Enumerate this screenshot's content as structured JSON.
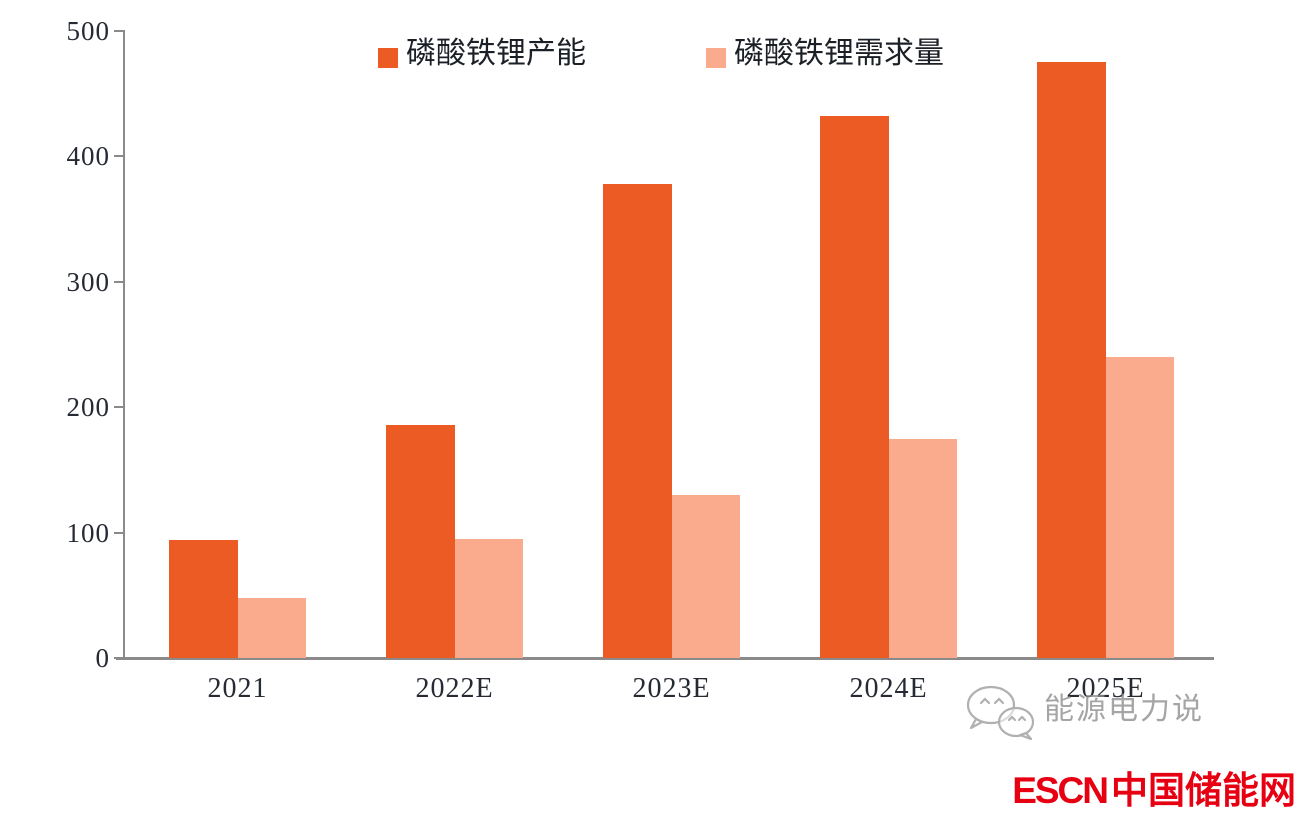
{
  "chart_data": {
    "type": "bar",
    "categories": [
      "2021",
      "2022E",
      "2023E",
      "2024E",
      "2025E"
    ],
    "series": [
      {
        "name": "磷酸铁锂产能",
        "color": "#EB5B23",
        "values": [
          94,
          186,
          378,
          432,
          475
        ]
      },
      {
        "name": "磷酸铁锂需求量",
        "color": "#FBAB8D",
        "values": [
          48,
          95,
          130,
          175,
          240
        ]
      }
    ],
    "title": "",
    "xlabel": "",
    "ylabel": "",
    "ylim": [
      0,
      500
    ],
    "yticks": [
      0,
      100,
      200,
      300,
      400,
      500
    ],
    "grid": false,
    "legend_position": "top"
  },
  "watermark": {
    "icon": "wechat-icon",
    "text": "能源电力说"
  },
  "brand": {
    "latin": "ESCN",
    "chinese": "中国储能网",
    "color": "#E60012"
  },
  "colors": {
    "axis": "#8A8A8A",
    "tick_label": "#262A33",
    "background": "#FFFFFF",
    "watermark": "#8D8D8D"
  }
}
